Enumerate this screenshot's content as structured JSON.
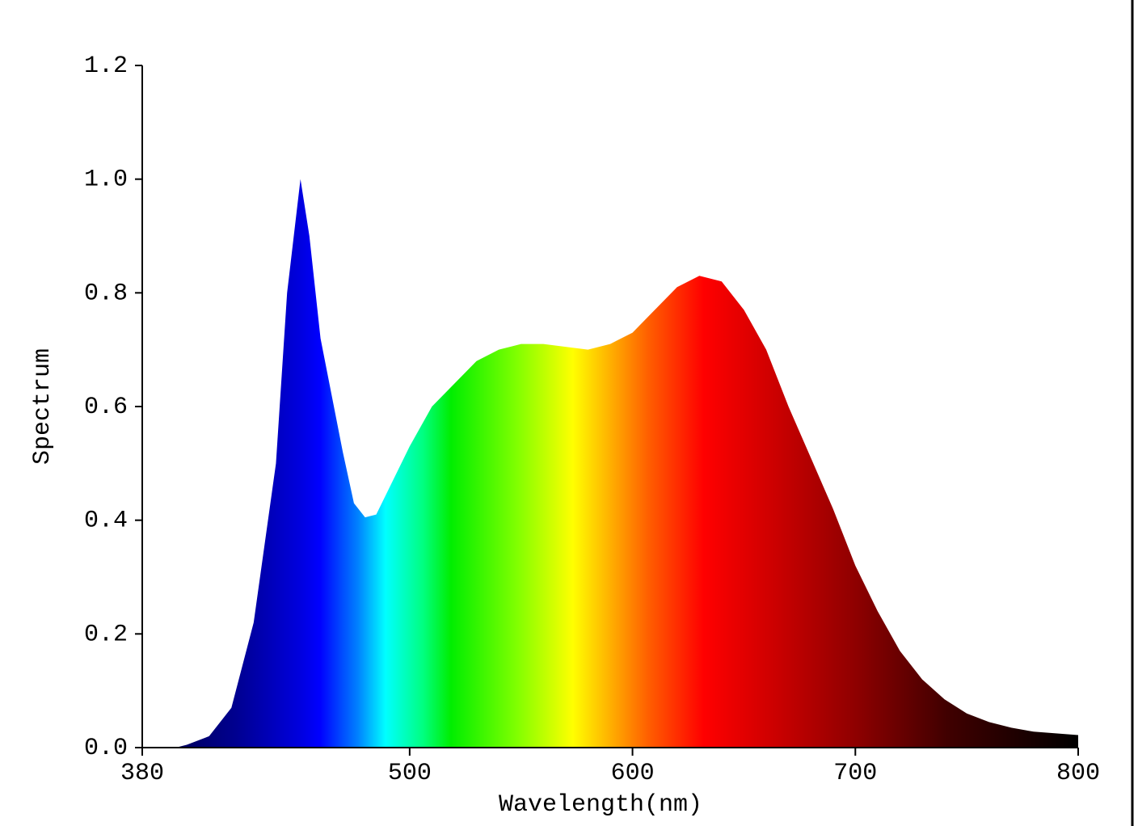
{
  "chart_data": {
    "type": "area",
    "x_label": "Wavelength(nm)",
    "y_label": "Spectrum",
    "x": [
      395,
      400,
      410,
      420,
      430,
      440,
      445,
      451,
      455,
      460,
      470,
      475,
      480,
      485,
      490,
      500,
      510,
      520,
      530,
      540,
      550,
      560,
      570,
      580,
      590,
      600,
      610,
      620,
      630,
      640,
      650,
      660,
      670,
      680,
      690,
      700,
      710,
      720,
      730,
      740,
      750,
      760,
      770,
      780,
      790,
      800
    ],
    "values": [
      0,
      0.005,
      0.02,
      0.07,
      0.22,
      0.5,
      0.8,
      1.0,
      0.9,
      0.72,
      0.52,
      0.43,
      0.405,
      0.41,
      0.45,
      0.53,
      0.6,
      0.64,
      0.68,
      0.7,
      0.71,
      0.71,
      0.705,
      0.7,
      0.71,
      0.73,
      0.77,
      0.81,
      0.83,
      0.82,
      0.77,
      0.7,
      0.6,
      0.51,
      0.42,
      0.32,
      0.24,
      0.17,
      0.12,
      0.085,
      0.06,
      0.045,
      0.035,
      0.028,
      0.025,
      0.022
    ],
    "xlim": [
      380,
      800
    ],
    "xticks": [
      380,
      500,
      600,
      700,
      800
    ],
    "ylim": [
      0,
      1.2
    ],
    "yticks": [
      {
        "value": 0,
        "label": "0.0"
      },
      0.2,
      0.4,
      0.6,
      0.8,
      {
        "value": 1,
        "label": "1.0"
      },
      1.2
    ],
    "grid": false
  }
}
